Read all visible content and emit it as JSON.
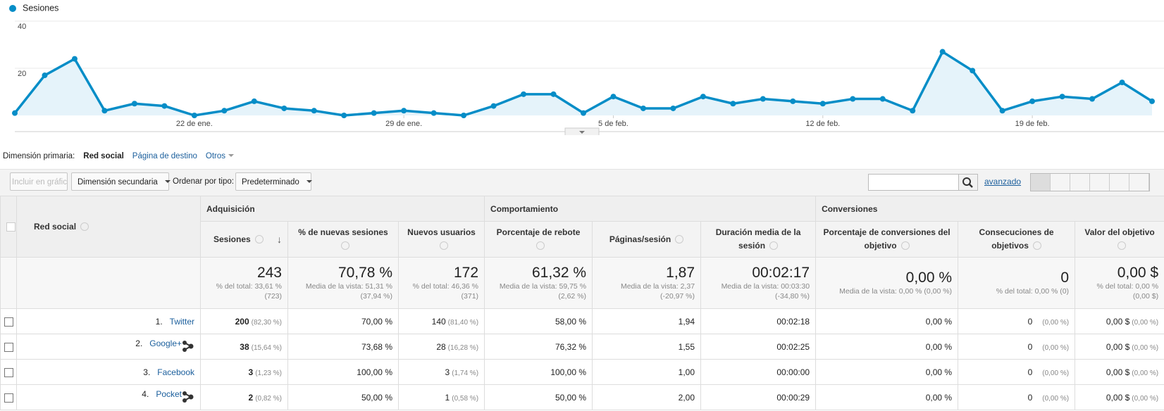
{
  "chart_data": {
    "type": "line",
    "series": [
      {
        "name": "Sesiones",
        "color": "#058dc7",
        "values": [
          1,
          17,
          24,
          2,
          5,
          4,
          0,
          2,
          6,
          3,
          2,
          0,
          1,
          2,
          1,
          0,
          4,
          9,
          9,
          1,
          8,
          3,
          3,
          8,
          5,
          7,
          6,
          5,
          7,
          7,
          2,
          27,
          19,
          2,
          6,
          8,
          7,
          14,
          6
        ]
      }
    ],
    "categories": [
      null,
      null,
      null,
      null,
      null,
      null,
      "22 de ene.",
      null,
      null,
      null,
      null,
      null,
      null,
      "29 de ene.",
      null,
      null,
      null,
      null,
      null,
      null,
      "5 de feb.",
      null,
      null,
      null,
      null,
      null,
      null,
      "12 de feb.",
      null,
      null,
      null,
      null,
      null,
      null,
      "19 de feb.",
      null,
      null,
      null,
      null
    ],
    "ylim": [
      0,
      40
    ],
    "yticks": [
      20,
      40
    ],
    "grid": true
  },
  "nav": {
    "label": "Dimensión primaria:",
    "active": "Red social",
    "links": [
      "Página de destino",
      "Otros"
    ]
  },
  "toolbar": {
    "include": "Incluir en gráfico",
    "secondary": "Dimensión secundaria",
    "sort_label": "Ordenar por tipo:",
    "sort": "Predeterminado",
    "advanced": "avanzado"
  },
  "table": {
    "dimension": "Red social",
    "groups": [
      {
        "label": "Adquisición",
        "columns": [
          "Sesiones",
          "% de nuevas sesiones",
          "Nuevos usuarios"
        ]
      },
      {
        "label": "Comportamiento",
        "columns": [
          "Porcentaje de rebote",
          "Páginas/sesión",
          "Duración media de la sesión"
        ]
      },
      {
        "label": "Conversiones",
        "columns": [
          "Porcentaje de conversiones del objetivo",
          "Consecuciones de objetivos",
          "Valor del objetivo"
        ]
      }
    ],
    "totals": [
      {
        "value": "243",
        "note": "% del total: 33,61 % (723)"
      },
      {
        "value": "70,78 %",
        "note": "Media de la vista: 51,31 % (37,94 %)"
      },
      {
        "value": "172",
        "note": "% del total: 46,36 % (371)"
      },
      {
        "value": "61,32 %",
        "note": "Media de la vista: 59,75 % (2,62 %)"
      },
      {
        "value": "1,87",
        "note": "Media de la vista: 2,37 (-20,97 %)"
      },
      {
        "value": "00:02:17",
        "note": "Media de la vista: 00:03:30 (-34,80 %)"
      },
      {
        "value": "0,00 %",
        "note": "Media de la vista: 0,00 % (0,00 %)"
      },
      {
        "value": "0",
        "note": "% del total: 0,00 % (0)"
      },
      {
        "value": "0,00 $",
        "note": "% del total: 0,00 % (0,00 $)"
      }
    ],
    "rows": [
      {
        "rank": "1.",
        "name": "Twitter",
        "social_icon": false,
        "cells": [
          {
            "value": "200",
            "share": "(82,30 %)"
          },
          {
            "value": "70,00 %"
          },
          {
            "value": "140",
            "share": "(81,40 %)"
          },
          {
            "value": "58,00 %"
          },
          {
            "value": "1,94"
          },
          {
            "value": "00:02:18"
          },
          {
            "value": "0,00 %"
          },
          {
            "value": "0",
            "share": "(0,00 %)"
          },
          {
            "value": "0,00 $",
            "share": "(0,00 %)"
          }
        ]
      },
      {
        "rank": "2.",
        "name": "Google+",
        "social_icon": true,
        "cells": [
          {
            "value": "38",
            "share": "(15,64 %)"
          },
          {
            "value": "73,68 %"
          },
          {
            "value": "28",
            "share": "(16,28 %)"
          },
          {
            "value": "76,32 %"
          },
          {
            "value": "1,55"
          },
          {
            "value": "00:02:25"
          },
          {
            "value": "0,00 %"
          },
          {
            "value": "0",
            "share": "(0,00 %)"
          },
          {
            "value": "0,00 $",
            "share": "(0,00 %)"
          }
        ]
      },
      {
        "rank": "3.",
        "name": "Facebook",
        "social_icon": false,
        "cells": [
          {
            "value": "3",
            "share": "(1,23 %)"
          },
          {
            "value": "100,00 %"
          },
          {
            "value": "3",
            "share": "(1,74 %)"
          },
          {
            "value": "100,00 %"
          },
          {
            "value": "1,00"
          },
          {
            "value": "00:00:00"
          },
          {
            "value": "0,00 %"
          },
          {
            "value": "0",
            "share": "(0,00 %)"
          },
          {
            "value": "0,00 $",
            "share": "(0,00 %)"
          }
        ]
      },
      {
        "rank": "4.",
        "name": "Pocket",
        "social_icon": true,
        "cells": [
          {
            "value": "2",
            "share": "(0,82 %)"
          },
          {
            "value": "50,00 %"
          },
          {
            "value": "1",
            "share": "(0,58 %)"
          },
          {
            "value": "50,00 %"
          },
          {
            "value": "2,00"
          },
          {
            "value": "00:00:29"
          },
          {
            "value": "0,00 %"
          },
          {
            "value": "0",
            "share": "(0,00 %)"
          },
          {
            "value": "0,00 $",
            "share": "(0,00 %)"
          }
        ]
      }
    ]
  }
}
